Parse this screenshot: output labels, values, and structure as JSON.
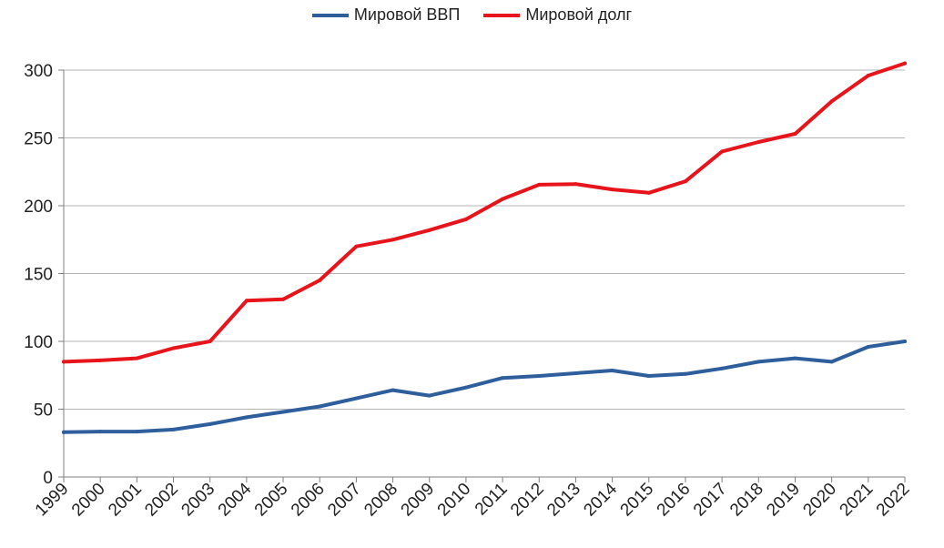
{
  "chart_data": {
    "type": "line",
    "title": "",
    "xlabel": "",
    "ylabel": "",
    "categories": [
      "1999",
      "2000",
      "2001",
      "2002",
      "2003",
      "2004",
      "2005",
      "2006",
      "2007",
      "2008",
      "2009",
      "2010",
      "2011",
      "2012",
      "2013",
      "2014",
      "2015",
      "2016",
      "2017",
      "2018",
      "2019",
      "2020",
      "2021",
      "2022"
    ],
    "ylim": [
      0,
      300
    ],
    "yticks": [
      "0",
      "50",
      "100",
      "150",
      "200",
      "250",
      "300"
    ],
    "grid": true,
    "legend_position": "top-center",
    "series": [
      {
        "name": "Мировой ВВП",
        "color": "#2E5E9C",
        "values": [
          33,
          33.5,
          33.5,
          35,
          39,
          44,
          48,
          52,
          58,
          64,
          60,
          66,
          73,
          74.5,
          76.5,
          78.5,
          74.5,
          76,
          80,
          85,
          87.5,
          85,
          96,
          100
        ]
      },
      {
        "name": "Мировой долг",
        "color": "#E8141B",
        "values": [
          85,
          86,
          87.5,
          95,
          100,
          130,
          131,
          145,
          170,
          175,
          182,
          190,
          205,
          215.5,
          216,
          212,
          209.5,
          218,
          240,
          247,
          253,
          277,
          296,
          305
        ]
      }
    ]
  }
}
